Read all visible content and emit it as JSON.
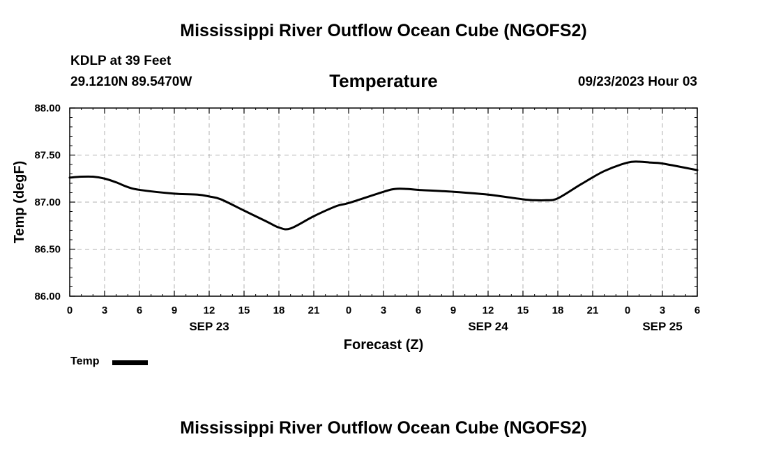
{
  "header": {
    "main_title": "Mississippi River Outflow Ocean Cube (NGOFS2)",
    "station": "KDLP at 39 Feet",
    "coords": "29.1210N  89.5470W",
    "variable": "Temperature",
    "datetime": "09/23/2023 Hour 03"
  },
  "footer": {
    "title": "Mississippi River Outflow Ocean Cube (NGOFS2)"
  },
  "legend": {
    "label": "Temp",
    "color": "#000000"
  },
  "chart_data": {
    "type": "line",
    "title": "Temperature",
    "xlabel": "Forecast (Z)",
    "ylabel": "Temp (degF)",
    "xlim": [
      0,
      54
    ],
    "ylim": [
      86.0,
      88.0
    ],
    "x_ticks": [
      0,
      3,
      6,
      9,
      12,
      15,
      18,
      21,
      24,
      27,
      30,
      33,
      36,
      39,
      42,
      45,
      48,
      51,
      54
    ],
    "x_tick_labels": [
      "0",
      "3",
      "6",
      "9",
      "12",
      "15",
      "18",
      "21",
      "0",
      "3",
      "6",
      "9",
      "12",
      "15",
      "18",
      "21",
      "0",
      "3",
      "6"
    ],
    "date_labels": [
      {
        "x": 12,
        "label": "SEP 23"
      },
      {
        "x": 36,
        "label": "SEP 24"
      },
      {
        "x": 51,
        "label": "SEP 25"
      }
    ],
    "y_ticks": [
      86.0,
      86.5,
      87.0,
      87.5,
      88.0
    ],
    "y_tick_labels": [
      "86.00",
      "86.50",
      "87.00",
      "87.50",
      "88.00"
    ],
    "grid": true,
    "series": [
      {
        "name": "Temp",
        "color": "#000000",
        "x": [
          0,
          1,
          2,
          3,
          4,
          5,
          6,
          9,
          11,
          12,
          13,
          15,
          17,
          18,
          19,
          21,
          23,
          24,
          27,
          28,
          29,
          30,
          33,
          36,
          39,
          40,
          41,
          42,
          44,
          46,
          48,
          49,
          50,
          51,
          54
        ],
        "y": [
          87.26,
          87.27,
          87.27,
          87.25,
          87.21,
          87.16,
          87.13,
          87.09,
          87.08,
          87.06,
          87.03,
          86.91,
          86.79,
          86.73,
          86.72,
          86.85,
          86.96,
          86.99,
          87.11,
          87.14,
          87.14,
          87.13,
          87.11,
          87.08,
          87.03,
          87.02,
          87.02,
          87.04,
          87.19,
          87.33,
          87.42,
          87.43,
          87.42,
          87.41,
          87.34
        ]
      }
    ]
  }
}
